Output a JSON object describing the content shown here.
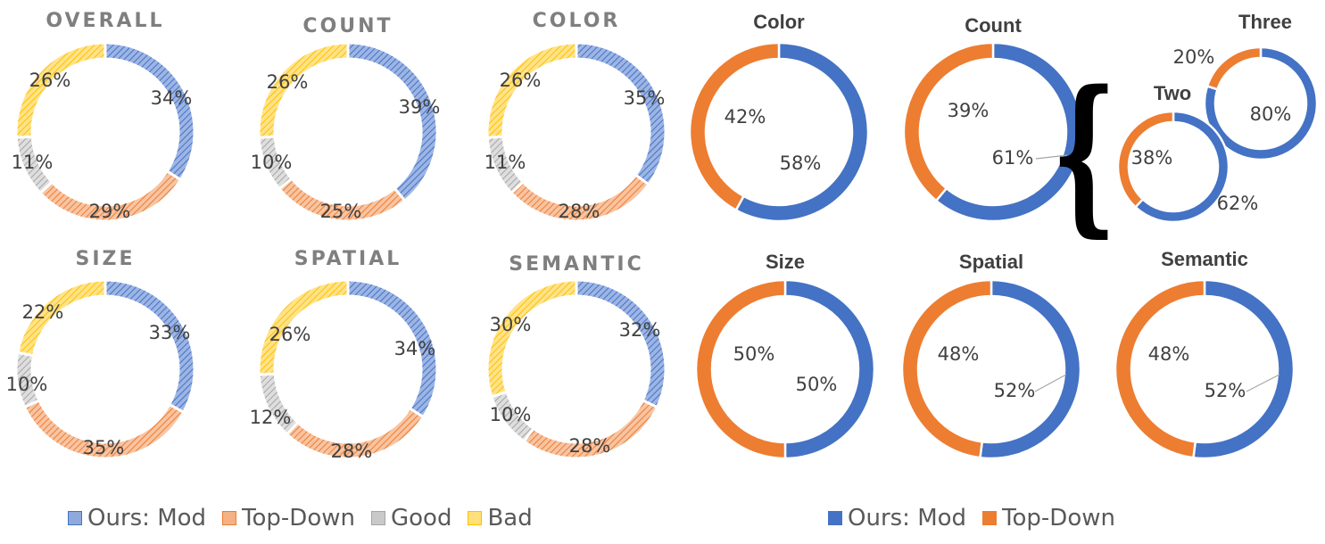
{
  "colors": {
    "ours_mod": "#4472C4",
    "top_down": "#ED7D31",
    "good": "#A5A5A5",
    "bad": "#FFC000"
  },
  "legend_left": [
    {
      "label": "Ours: Mod",
      "color": "#8FA9DC"
    },
    {
      "label": "Top-Down",
      "color": "#F4B183"
    },
    {
      "label": "Good",
      "color": "#C9C9C9"
    },
    {
      "label": "Bad",
      "color": "#FFE07A"
    }
  ],
  "legend_right": [
    {
      "label": "Ours: Mod",
      "color": "#4472C4"
    },
    {
      "label": "Top-Down",
      "color": "#ED7D31"
    }
  ],
  "bracket_glyph": "{",
  "chart_data": [
    {
      "type": "pie",
      "style": "hatched-donut",
      "title": "OVERALL",
      "categories": [
        "Ours: Mod",
        "Top-Down",
        "Good",
        "Bad"
      ],
      "values": [
        34,
        29,
        11,
        26
      ],
      "labels": [
        "34%",
        "29%",
        "11%",
        "26%"
      ]
    },
    {
      "type": "pie",
      "style": "hatched-donut",
      "title": "COUNT",
      "categories": [
        "Ours: Mod",
        "Top-Down",
        "Good",
        "Bad"
      ],
      "values": [
        39,
        25,
        10,
        26
      ],
      "labels": [
        "39%",
        "25%",
        "10%",
        "26%"
      ]
    },
    {
      "type": "pie",
      "style": "hatched-donut",
      "title": "COLOR",
      "categories": [
        "Ours: Mod",
        "Top-Down",
        "Good",
        "Bad"
      ],
      "values": [
        35,
        28,
        11,
        26
      ],
      "labels": [
        "35%",
        "28%",
        "11%",
        "26%"
      ]
    },
    {
      "type": "pie",
      "style": "hatched-donut",
      "title": "SIZE",
      "categories": [
        "Ours: Mod",
        "Top-Down",
        "Good",
        "Bad"
      ],
      "values": [
        33,
        35,
        10,
        22
      ],
      "labels": [
        "33%",
        "35%",
        "10%",
        "22%"
      ]
    },
    {
      "type": "pie",
      "style": "hatched-donut",
      "title": "SPATIAL",
      "categories": [
        "Ours: Mod",
        "Top-Down",
        "Good",
        "Bad"
      ],
      "values": [
        34,
        28,
        12,
        26
      ],
      "labels": [
        "34%",
        "28%",
        "12%",
        "26%"
      ]
    },
    {
      "type": "pie",
      "style": "hatched-donut",
      "title": "SEMANTIC",
      "categories": [
        "Ours: Mod",
        "Top-Down",
        "Good",
        "Bad"
      ],
      "values": [
        32,
        28,
        10,
        30
      ],
      "labels": [
        "32%",
        "28%",
        "10%",
        "30%"
      ]
    },
    {
      "type": "pie",
      "style": "solid-donut",
      "title": "Color",
      "categories": [
        "Ours: Mod",
        "Top-Down"
      ],
      "values": [
        58,
        42
      ],
      "labels": [
        "58%",
        "42%"
      ]
    },
    {
      "type": "pie",
      "style": "solid-donut",
      "title": "Count",
      "categories": [
        "Ours: Mod",
        "Top-Down"
      ],
      "values": [
        61,
        39
      ],
      "labels": [
        "61%",
        "39%"
      ]
    },
    {
      "type": "pie",
      "style": "solid-donut",
      "title": "Three",
      "categories": [
        "Ours: Mod",
        "Top-Down"
      ],
      "values": [
        80,
        20
      ],
      "labels": [
        "80%",
        "20%"
      ]
    },
    {
      "type": "pie",
      "style": "solid-donut",
      "title": "Two",
      "categories": [
        "Ours: Mod",
        "Top-Down"
      ],
      "values": [
        62,
        38
      ],
      "labels": [
        "62%",
        "38%"
      ]
    },
    {
      "type": "pie",
      "style": "solid-donut",
      "title": "Size",
      "categories": [
        "Ours: Mod",
        "Top-Down"
      ],
      "values": [
        50,
        50
      ],
      "labels": [
        "50%",
        "50%"
      ]
    },
    {
      "type": "pie",
      "style": "solid-donut",
      "title": "Spatial",
      "categories": [
        "Ours: Mod",
        "Top-Down"
      ],
      "values": [
        52,
        48
      ],
      "labels": [
        "52%",
        "48%"
      ]
    },
    {
      "type": "pie",
      "style": "solid-donut",
      "title": "Semantic",
      "categories": [
        "Ours: Mod",
        "Top-Down"
      ],
      "values": [
        52,
        48
      ],
      "labels": [
        "52%",
        "48%"
      ]
    }
  ]
}
